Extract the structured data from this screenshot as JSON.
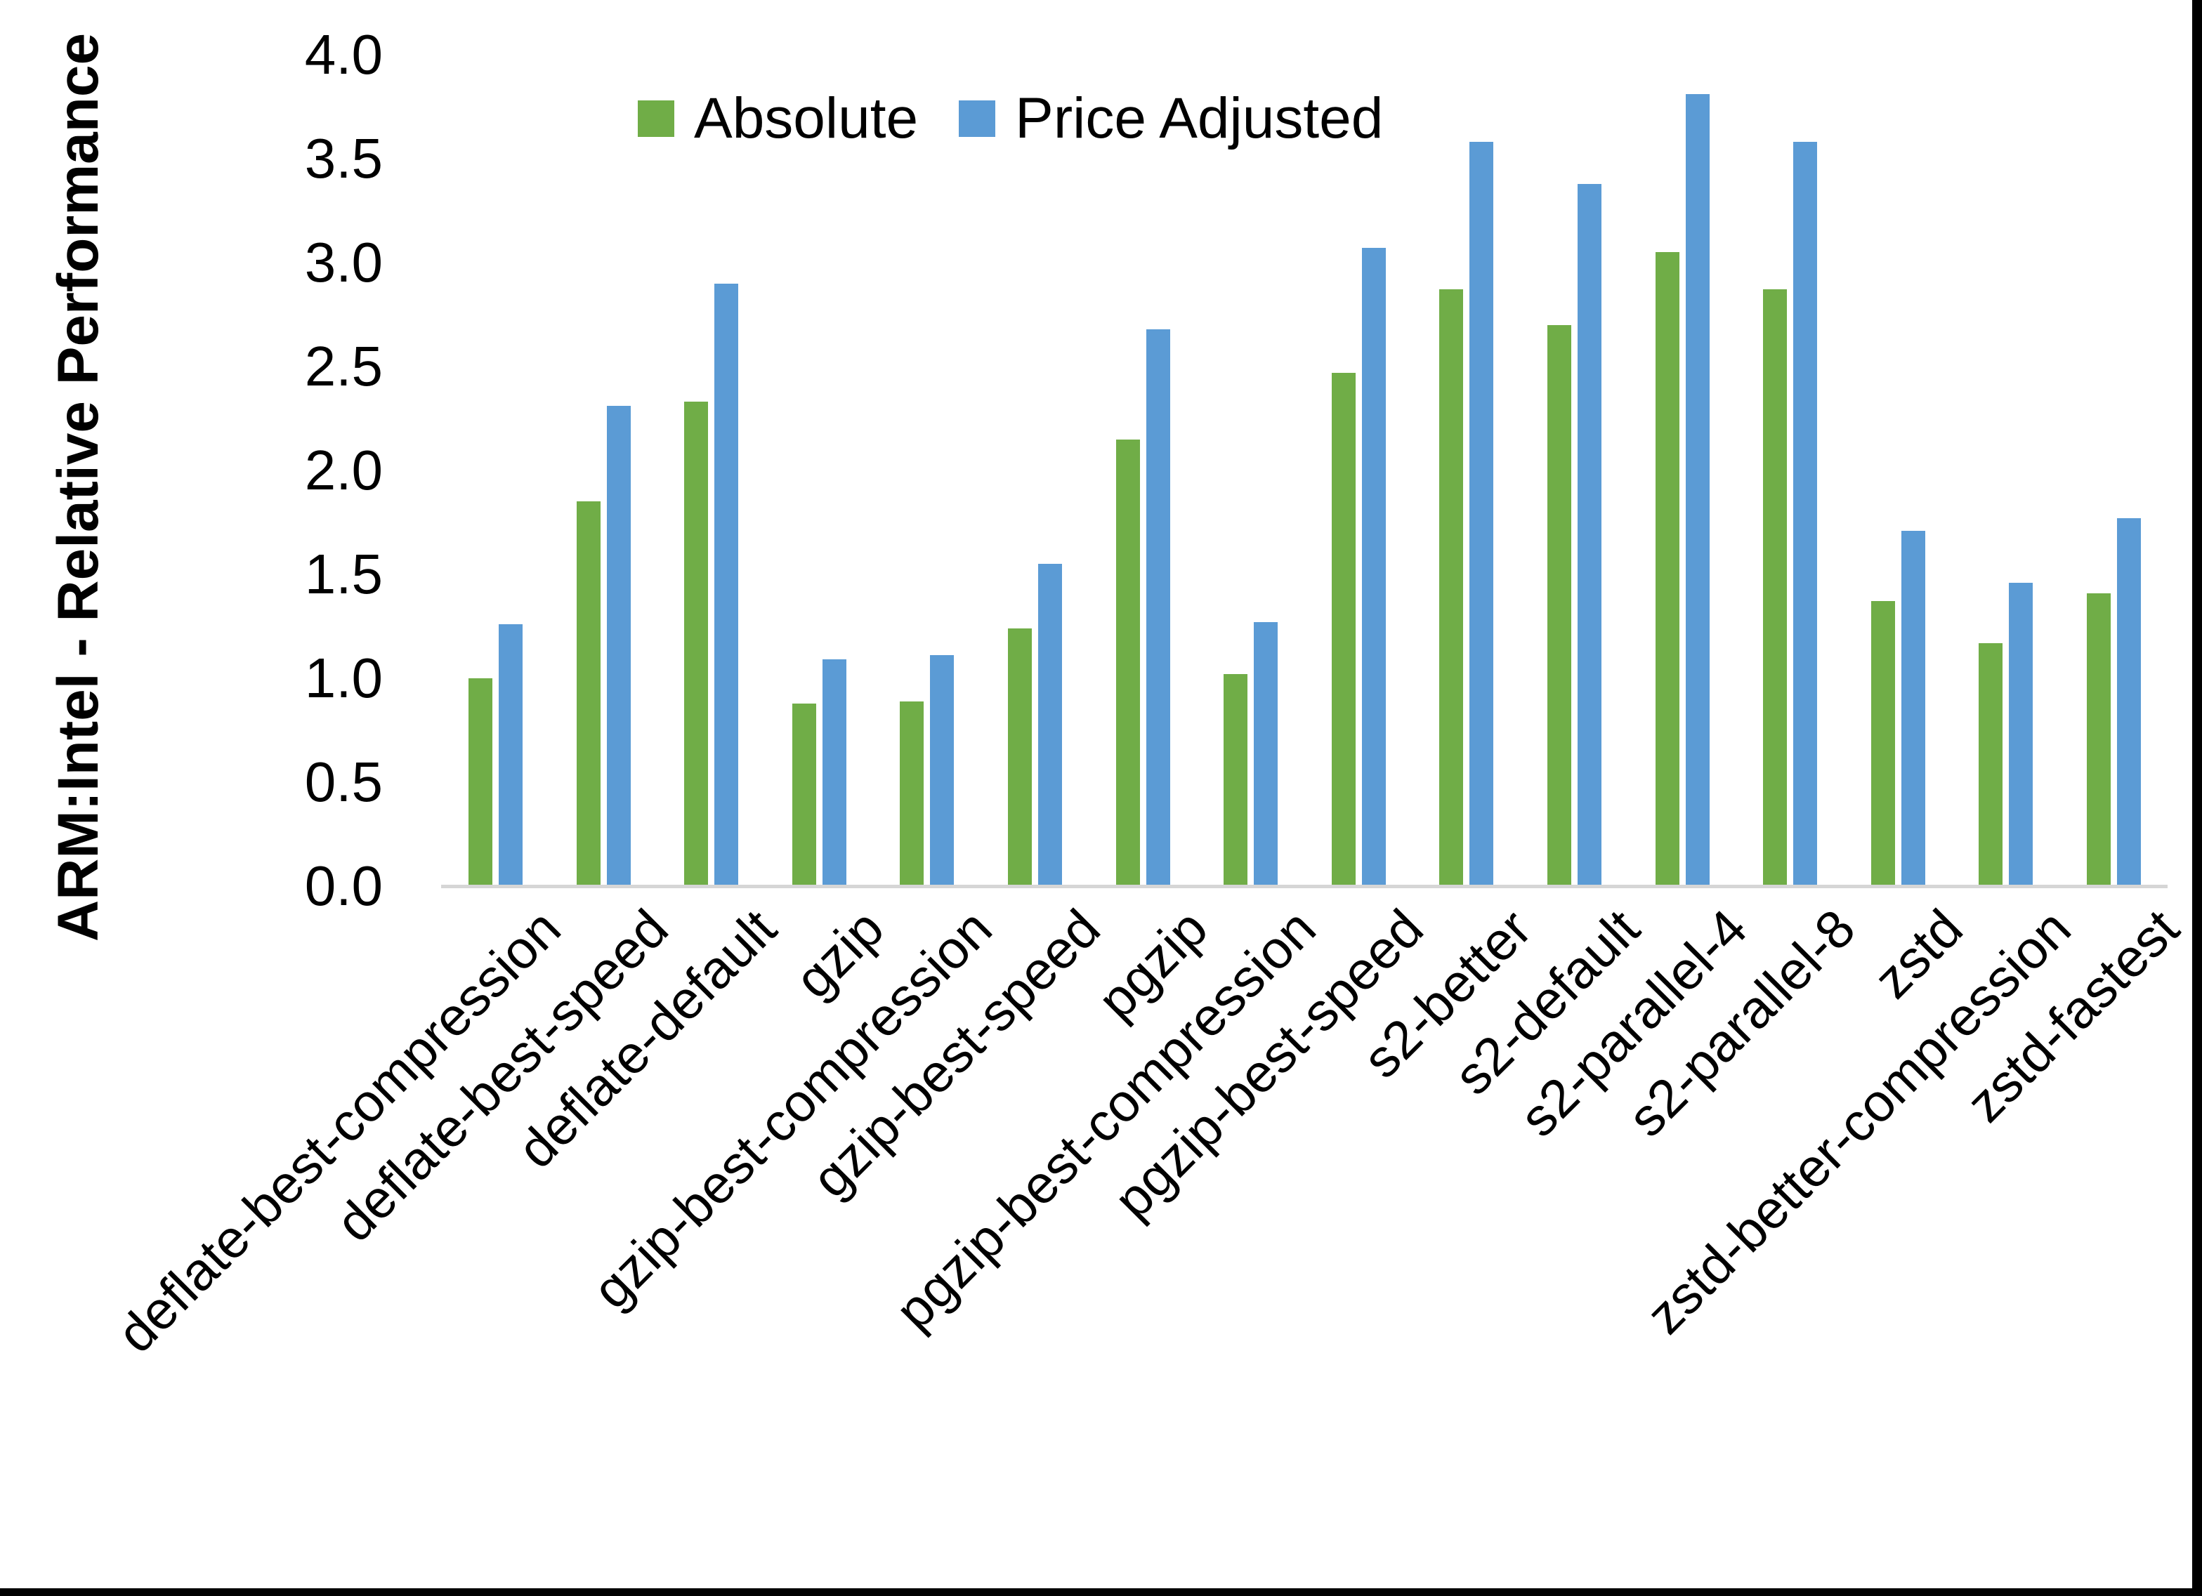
{
  "chart_data": {
    "type": "bar",
    "title": "",
    "xlabel": "",
    "ylabel": "ARM:Intel - Relative Performance",
    "ylim": [
      0.0,
      4.0
    ],
    "ytick_step": 0.5,
    "yticks_top_to_bottom": [
      "4.0",
      "3.5",
      "3.0",
      "2.5",
      "2.0",
      "1.5",
      "1.0",
      "0.5",
      "0.0"
    ],
    "grid": false,
    "legend_position": "top-center",
    "categories": [
      "deflate-best-compression",
      "deflate-best-speed",
      "deflate-default",
      "gzip",
      "gzip-best-compression",
      "gzip-best-speed",
      "pgzip",
      "pgzip-best-compression",
      "pgzip-best-speed",
      "s2-better",
      "s2-default",
      "s2-parallel-4",
      "s2-parallel-8",
      "zstd",
      "zstd-better-compression",
      "zstd-fastest"
    ],
    "series": [
      {
        "name": "Absolute",
        "color": "#70AD47",
        "values": [
          1.0,
          1.85,
          2.33,
          0.88,
          0.89,
          1.24,
          2.15,
          1.02,
          2.47,
          2.87,
          2.7,
          3.05,
          2.87,
          1.37,
          1.17,
          1.41
        ]
      },
      {
        "name": "Price Adjusted",
        "color": "#5B9BD5",
        "values": [
          1.26,
          2.31,
          2.9,
          1.09,
          1.11,
          1.55,
          2.68,
          1.27,
          3.07,
          3.58,
          3.38,
          3.81,
          3.58,
          1.71,
          1.46,
          1.77
        ]
      }
    ],
    "colors": {
      "axis_line": "#d6d6d6",
      "text": "#000000",
      "background": "#ffffff",
      "border": "#000000"
    }
  }
}
